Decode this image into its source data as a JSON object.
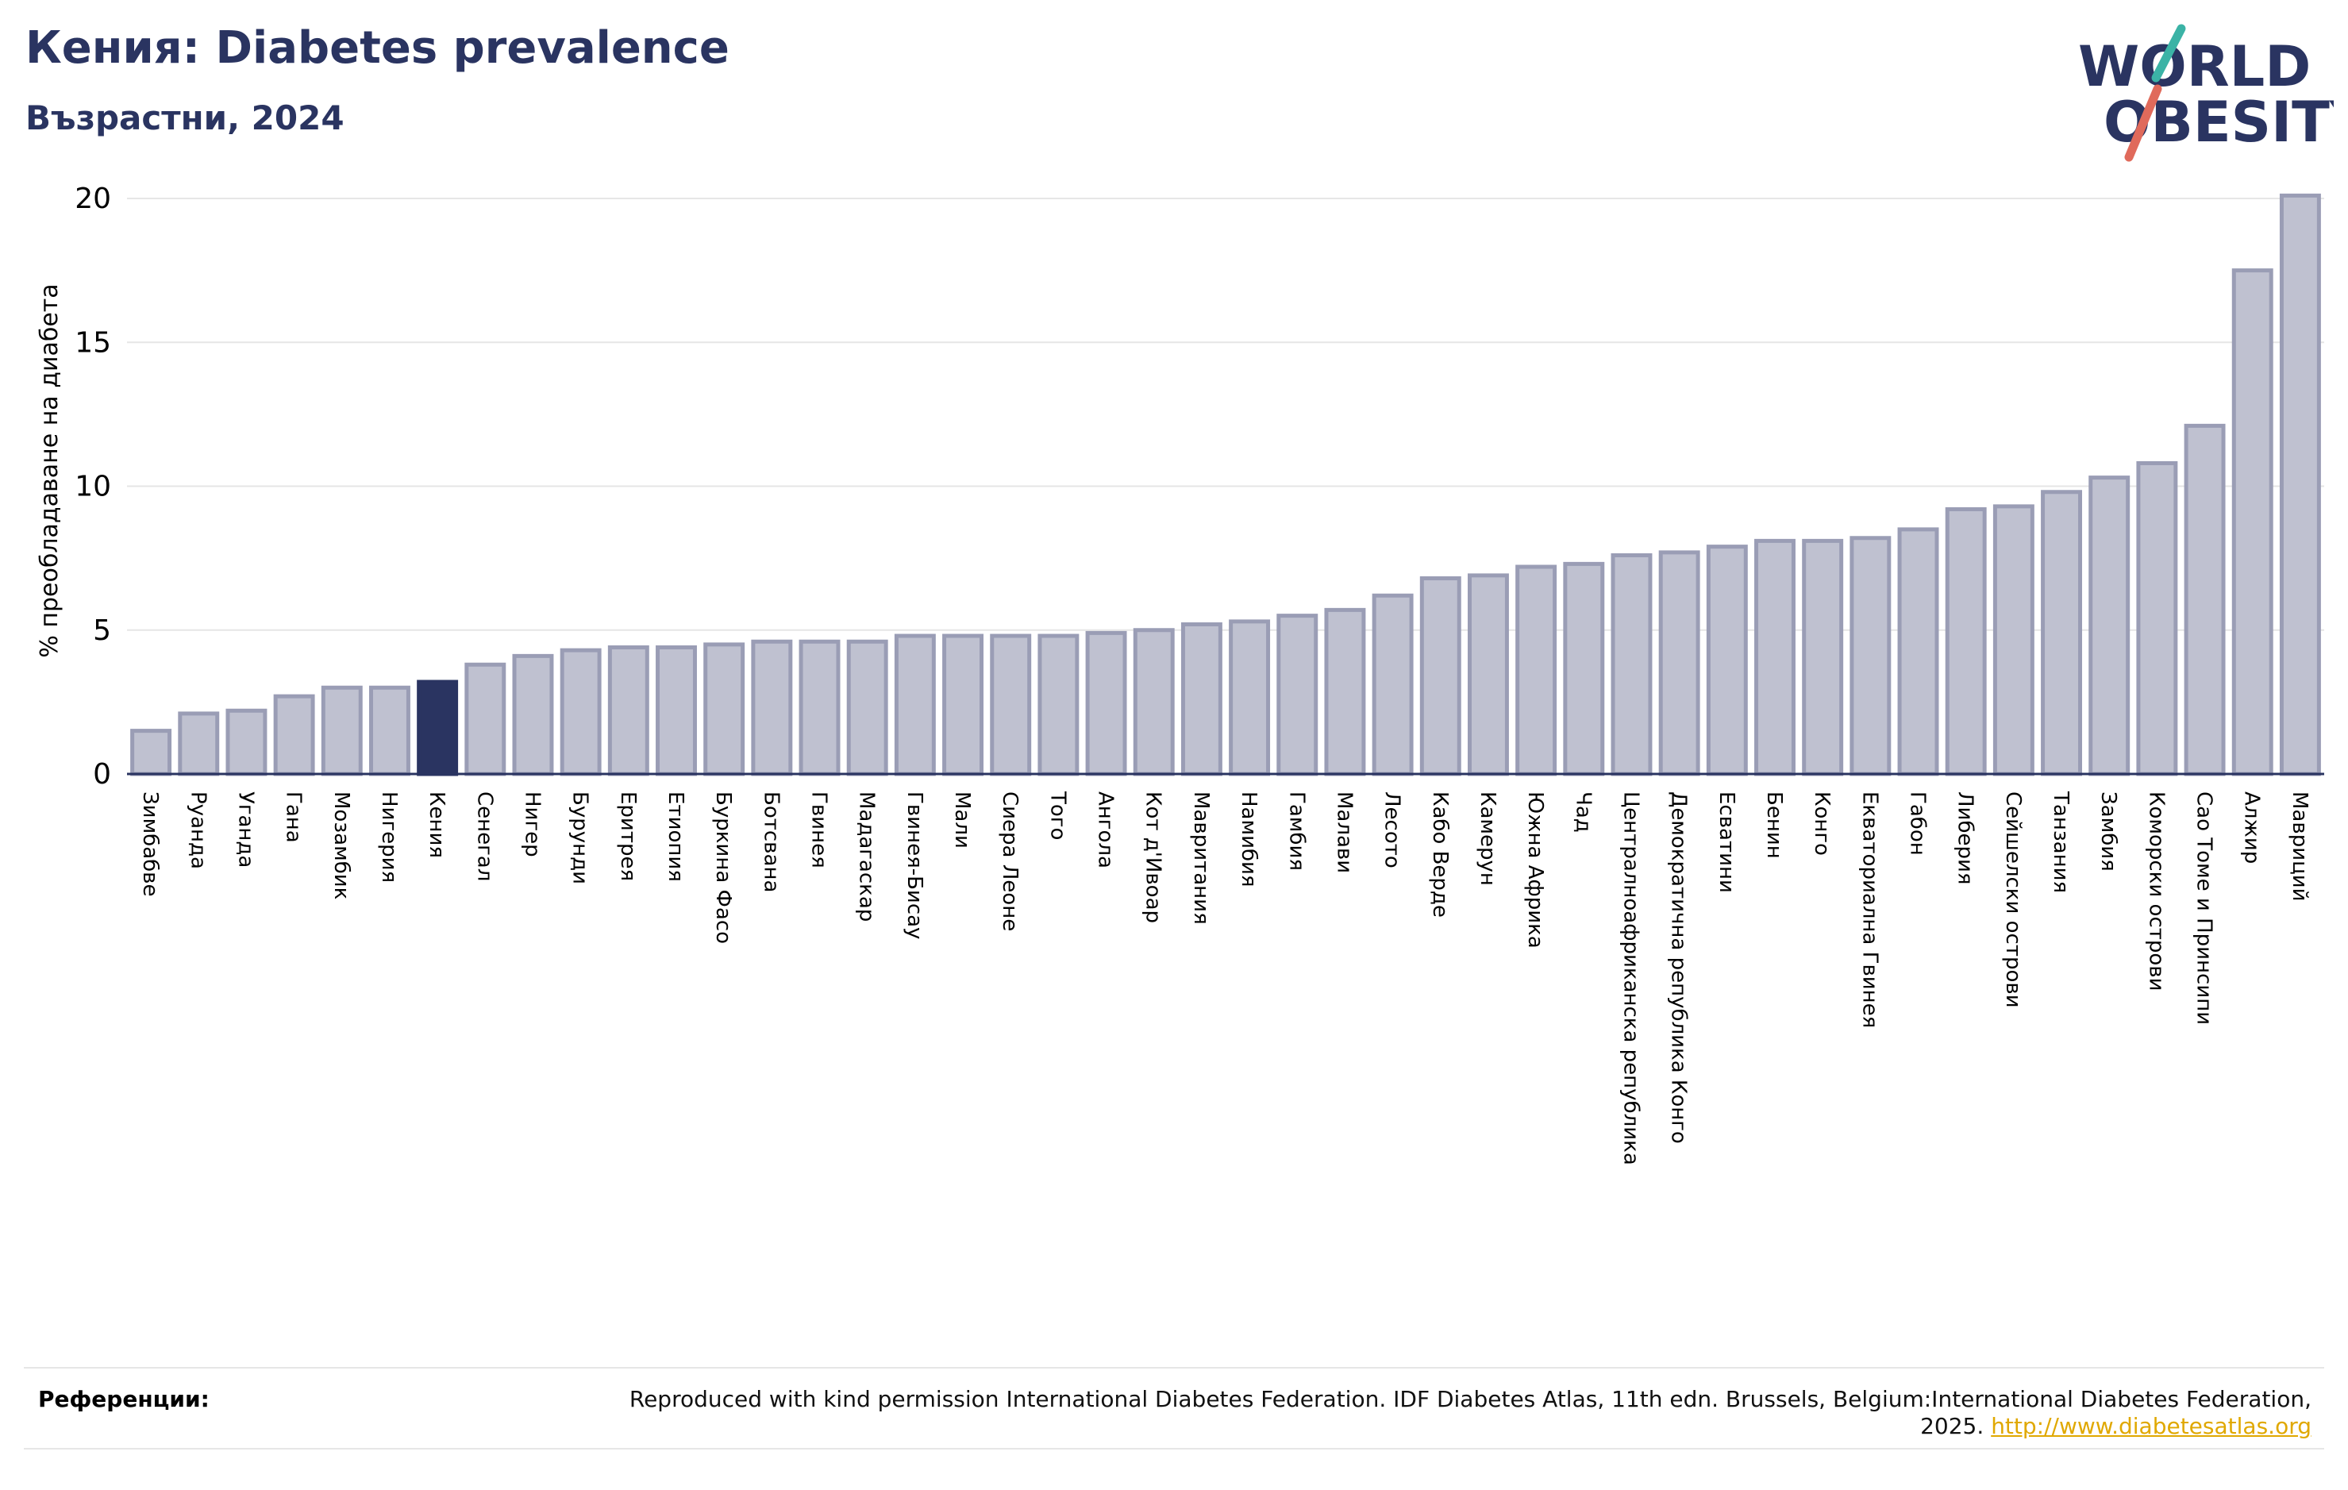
{
  "header": {
    "title": "Кения: Diabetes prevalence",
    "subtitle": "Възрастни, 2024"
  },
  "logo": {
    "line1": "WORLD",
    "line2": "OBESITY"
  },
  "colors": {
    "accent": "#2a3461",
    "bar": "#bfc1d0",
    "bar_stroke": "#9a9db5",
    "teal": "#3bb3a6",
    "coral": "#e06a5b"
  },
  "chart_data": {
    "type": "bar",
    "title": "Кения: Diabetes prevalence",
    "subtitle": "Възрастни, 2024",
    "xlabel": "",
    "ylabel": "% преобладаване на диабета",
    "ylim": [
      0,
      20
    ],
    "yticks": [
      0,
      5,
      10,
      15,
      20
    ],
    "grid": true,
    "highlight": "Кения",
    "categories": [
      "Зимбабве",
      "Руанда",
      "Уганда",
      "Гана",
      "Мозамбик",
      "Нигерия",
      "Кения",
      "Сенегал",
      "Нигер",
      "Бурунди",
      "Еритрея",
      "Етиопия",
      "Буркина Фасо",
      "Ботсвана",
      "Гвинея",
      "Мадагаскар",
      "Гвинея-Бисау",
      "Мали",
      "Сиера Леоне",
      "Того",
      "Ангола",
      "Кот д'Ивоар",
      "Мавритания",
      "Намибия",
      "Гамбия",
      "Малави",
      "Лесото",
      "Кабо Верде",
      "Камерун",
      "Южна Африка",
      "Чад",
      "Централноафриканска република",
      "Демократична република Конго",
      "Есватини",
      "Бенин",
      "Конго",
      "Екваториална Гвинея",
      "Габон",
      "Либерия",
      "Сейшелски острови",
      "Танзания",
      "Замбия",
      "Коморски острови",
      "Сао Томе и Принсипи",
      "Алжир",
      "Мавриций"
    ],
    "values": [
      1.5,
      2.1,
      2.2,
      2.7,
      3.0,
      3.0,
      3.2,
      3.8,
      4.1,
      4.3,
      4.4,
      4.4,
      4.5,
      4.6,
      4.6,
      4.6,
      4.8,
      4.8,
      4.8,
      4.8,
      4.9,
      5.0,
      5.2,
      5.3,
      5.5,
      5.7,
      6.2,
      6.8,
      6.9,
      7.2,
      7.3,
      7.6,
      7.7,
      7.9,
      8.1,
      8.1,
      8.2,
      8.5,
      9.2,
      9.3,
      9.8,
      10.3,
      10.8,
      12.1,
      17.5,
      20.1
    ]
  },
  "footer": {
    "label": "Референции:",
    "text": "Reproduced with kind permission International Diabetes Federation. IDF Diabetes Atlas, 11th edn. Brussels, Belgium:International Diabetes Federation, 2025.",
    "link": "http://www.diabetesatlas.org"
  }
}
